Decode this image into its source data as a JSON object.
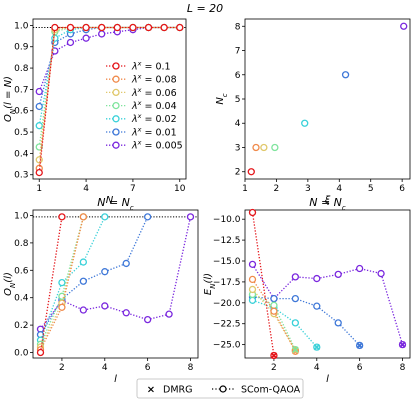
{
  "suptitle": "L = 20",
  "colors": {
    "0.1": "#e4151a",
    "0.08": "#f08a4b",
    "0.06": "#e0c86b",
    "0.04": "#7fe49d",
    "0.02": "#3ad1d9",
    "0.01": "#3f78d8",
    "0.005": "#7a27de",
    "reference": "#000000"
  },
  "chart_data": [
    {
      "id": "A",
      "type": "line",
      "title": "",
      "xlabel": "N",
      "ylabel": "O_N(l = N)",
      "xlim": [
        0.6,
        10.4
      ],
      "ylim": [
        0.28,
        1.03
      ],
      "xticks": [
        1,
        4,
        7,
        10
      ],
      "xtick_labels": [
        "1",
        "4",
        "7",
        "10"
      ],
      "yticks": [
        0.3,
        0.4,
        0.5,
        0.6,
        0.7,
        0.8,
        0.9,
        1.0
      ],
      "ytick_labels": [
        "0.3",
        "0.4",
        "0.5",
        "0.6",
        "0.7",
        "0.8",
        "0.9",
        "1.0"
      ],
      "reference_line": 0.99,
      "legend": {
        "placement": "center-right",
        "labels": [
          "λ^x = 0.1",
          "λ^x = 0.08",
          "λ^x = 0.06",
          "λ^x = 0.04",
          "λ^x = 0.02",
          "λ^x = 0.01",
          "λ^x = 0.005"
        ]
      },
      "series": [
        {
          "name": "0.1",
          "x": [
            1,
            2,
            3,
            4,
            5,
            6,
            7,
            8,
            9,
            10
          ],
          "y": [
            0.31,
            0.99,
            0.99,
            0.99,
            0.99,
            0.99,
            0.99,
            0.99,
            0.99,
            0.99
          ]
        },
        {
          "name": "0.08",
          "x": [
            1,
            2,
            3,
            4,
            5,
            6,
            7,
            8,
            9,
            10
          ],
          "y": [
            0.33,
            0.99,
            0.99,
            0.99,
            0.99,
            0.99,
            0.99,
            0.99,
            0.99,
            0.99
          ]
        },
        {
          "name": "0.06",
          "x": [
            1,
            2,
            3,
            4,
            5,
            6,
            7,
            8,
            9,
            10
          ],
          "y": [
            0.37,
            0.98,
            0.99,
            0.99,
            0.99,
            0.99,
            0.99,
            0.99,
            0.99,
            0.99
          ]
        },
        {
          "name": "0.04",
          "x": [
            1,
            2,
            3,
            4,
            5,
            6,
            7,
            8,
            9,
            10
          ],
          "y": [
            0.43,
            0.97,
            0.99,
            0.99,
            0.99,
            0.99,
            0.99,
            0.99,
            0.99,
            0.99
          ]
        },
        {
          "name": "0.02",
          "x": [
            1,
            2,
            3,
            4,
            5,
            6,
            7,
            8,
            9,
            10
          ],
          "y": [
            0.53,
            0.94,
            0.98,
            0.99,
            0.99,
            0.99,
            0.99,
            0.99,
            0.99,
            0.99
          ]
        },
        {
          "name": "0.01",
          "x": [
            1,
            2,
            3,
            4,
            5,
            6,
            7,
            8,
            9,
            10
          ],
          "y": [
            0.62,
            0.92,
            0.96,
            0.98,
            0.99,
            0.99,
            0.99,
            0.99,
            0.99,
            0.99
          ]
        },
        {
          "name": "0.005",
          "x": [
            1,
            2,
            3,
            4,
            5,
            6,
            7,
            8,
            9,
            10
          ],
          "y": [
            0.69,
            0.88,
            0.92,
            0.94,
            0.96,
            0.97,
            0.98,
            0.99,
            0.99,
            0.99
          ]
        }
      ]
    },
    {
      "id": "B",
      "type": "scatter",
      "title": "",
      "xlabel": "ξ",
      "ylabel": "N_c",
      "xlim": [
        1.0,
        6.25
      ],
      "ylim": [
        1.7,
        8.3
      ],
      "xticks": [
        1,
        2,
        3,
        4,
        5,
        6
      ],
      "xtick_labels": [
        "1",
        "2",
        "3",
        "4",
        "5",
        "6"
      ],
      "yticks": [
        2,
        3,
        4,
        5,
        6,
        7,
        8
      ],
      "ytick_labels": [
        "2",
        "3",
        "4",
        "5",
        "6",
        "7",
        "8"
      ],
      "points": [
        {
          "name": "0.1",
          "x": 1.2,
          "y": 2
        },
        {
          "name": "0.08",
          "x": 1.35,
          "y": 3
        },
        {
          "name": "0.06",
          "x": 1.6,
          "y": 3
        },
        {
          "name": "0.04",
          "x": 1.95,
          "y": 3
        },
        {
          "name": "0.02",
          "x": 2.9,
          "y": 4
        },
        {
          "name": "0.01",
          "x": 4.2,
          "y": 6
        },
        {
          "name": "0.005",
          "x": 6.05,
          "y": 8
        }
      ]
    },
    {
      "id": "C",
      "type": "line",
      "title": "N = N_c",
      "xlabel": "l",
      "ylabel": "O_N(l)",
      "xlim": [
        0.65,
        8.35
      ],
      "ylim": [
        -0.04,
        1.04
      ],
      "xticks": [
        2,
        4,
        6,
        8
      ],
      "xtick_labels": [
        "2",
        "4",
        "6",
        "8"
      ],
      "yticks": [
        0.0,
        0.2,
        0.4,
        0.6,
        0.8,
        1.0
      ],
      "ytick_labels": [
        "0.0",
        "0.2",
        "0.4",
        "0.6",
        "0.8",
        "1.0"
      ],
      "reference_line": 0.99,
      "series": [
        {
          "name": "0.1",
          "x": [
            1,
            2
          ],
          "y": [
            0.0,
            0.99
          ]
        },
        {
          "name": "0.08",
          "x": [
            1,
            2,
            3
          ],
          "y": [
            0.02,
            0.33,
            0.99
          ]
        },
        {
          "name": "0.06",
          "x": [
            1,
            2,
            3
          ],
          "y": [
            0.04,
            0.36,
            0.99
          ]
        },
        {
          "name": "0.04",
          "x": [
            1,
            2,
            3
          ],
          "y": [
            0.06,
            0.41,
            0.99
          ]
        },
        {
          "name": "0.02",
          "x": [
            1,
            2,
            3,
            4
          ],
          "y": [
            0.09,
            0.51,
            0.66,
            0.99
          ]
        },
        {
          "name": "0.01",
          "x": [
            1,
            2,
            3,
            4,
            5,
            6
          ],
          "y": [
            0.13,
            0.39,
            0.52,
            0.59,
            0.65,
            0.99
          ]
        },
        {
          "name": "0.005",
          "x": [
            1,
            2,
            3,
            4,
            5,
            6,
            7,
            8
          ],
          "y": [
            0.17,
            0.38,
            0.31,
            0.34,
            0.29,
            0.24,
            0.28,
            0.99
          ]
        }
      ]
    },
    {
      "id": "D",
      "type": "line",
      "title": "N = N_c",
      "xlabel": "l",
      "ylabel": "E_N(l)",
      "xlim": [
        0.65,
        8.35
      ],
      "ylim": [
        -26.6,
        -8.9
      ],
      "xticks": [
        2,
        4,
        6,
        8
      ],
      "xtick_labels": [
        "2",
        "4",
        "6",
        "8"
      ],
      "yticks": [
        -10.0,
        -12.5,
        -15.0,
        -17.5,
        -20.0,
        -22.5,
        -25.0
      ],
      "ytick_labels": [
        "−10.0",
        "−12.5",
        "−15.0",
        "−17.5",
        "−20.0",
        "−22.5",
        "−25.0"
      ],
      "series": [
        {
          "name": "0.1",
          "x": [
            1,
            2
          ],
          "y": [
            -9.2,
            -26.3
          ]
        },
        {
          "name": "0.08",
          "x": [
            1,
            2,
            3
          ],
          "y": [
            -17.2,
            -21.0,
            -25.8
          ]
        },
        {
          "name": "0.06",
          "x": [
            1,
            2,
            3
          ],
          "y": [
            -18.4,
            -21.3,
            -25.7
          ]
        },
        {
          "name": "0.04",
          "x": [
            1,
            2,
            3
          ],
          "y": [
            -19.0,
            -20.3,
            -25.6
          ]
        },
        {
          "name": "0.02",
          "x": [
            1,
            2,
            3,
            4
          ],
          "y": [
            -19.7,
            -20.6,
            -22.4,
            -25.3
          ]
        },
        {
          "name": "0.01",
          "x": [
            1,
            2,
            3,
            4,
            5,
            6
          ],
          "y": [
            -19.3,
            -19.5,
            -19.5,
            -20.4,
            -22.4,
            -25.1
          ]
        },
        {
          "name": "0.005",
          "x": [
            1,
            2,
            3,
            4,
            5,
            6,
            7,
            8
          ],
          "y": [
            -15.4,
            -19.5,
            -16.9,
            -17.1,
            -16.6,
            -15.9,
            -16.5,
            -25.0
          ]
        }
      ],
      "dmrg": [
        {
          "name": "0.1",
          "x": 2,
          "y": -26.3
        },
        {
          "name": "0.08",
          "x": 3,
          "y": -25.8
        },
        {
          "name": "0.06",
          "x": 3,
          "y": -25.7
        },
        {
          "name": "0.04",
          "x": 3,
          "y": -25.6
        },
        {
          "name": "0.02",
          "x": 4,
          "y": -25.3
        },
        {
          "name": "0.01",
          "x": 6,
          "y": -25.1
        },
        {
          "name": "0.005",
          "x": 8,
          "y": -25.0
        }
      ]
    }
  ],
  "bottom_legend": {
    "dmrg_label": "DMRG",
    "scom_label": "SCom-QAOA"
  }
}
